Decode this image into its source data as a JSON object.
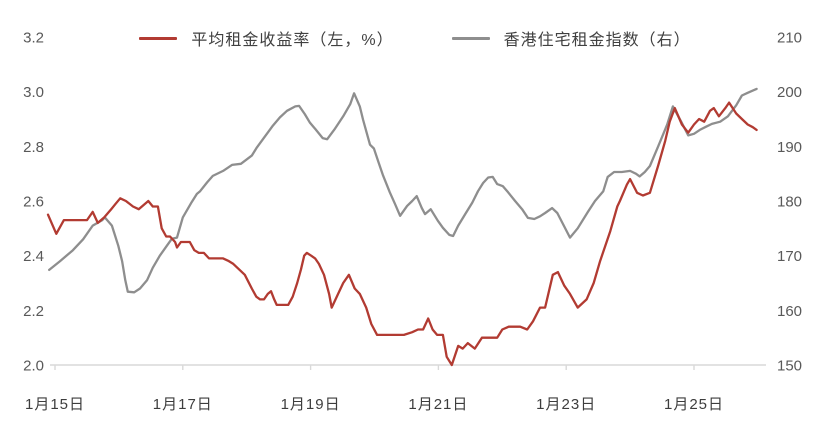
{
  "legend": {
    "items": [
      {
        "label": "平均租金收益率（左，%）",
        "marker": "line-icon"
      },
      {
        "label": "香港住宅租金指数（右）",
        "marker": "line-icon"
      }
    ]
  },
  "colors": {
    "yield_line": "#b23b32",
    "index_line": "#8e8e8e",
    "axis_line": "#d9d9d9",
    "y_tick_text": "#595959",
    "x_tick_text": "#3d3d3d",
    "background": "#ffffff"
  },
  "chart_data": {
    "type": "line",
    "title": "",
    "grid": false,
    "legend_position": "top",
    "x_unit": "day of January",
    "x_range": [
      14.85,
      26.1
    ],
    "x_ticks": {
      "values": [
        15,
        17,
        19,
        21,
        23,
        25
      ],
      "labels": [
        "1月15日",
        "1月17日",
        "1月19日",
        "1月21日",
        "1月23日",
        "1月25日"
      ]
    },
    "left_axis": {
      "label": "平均租金收益率（%）",
      "range": [
        2.0,
        3.2
      ],
      "tick_values": [
        3.2,
        3.0,
        2.8,
        2.6,
        2.4,
        2.2,
        2.0
      ],
      "tick_labels": [
        "3.2",
        "3.0",
        "2.8",
        "2.6",
        "2.4",
        "2.2",
        "2.0"
      ]
    },
    "right_axis": {
      "label": "香港住宅租金指数",
      "range": [
        150,
        210
      ],
      "tick_values": [
        210,
        200,
        190,
        180,
        170,
        160,
        150
      ],
      "tick_labels": [
        "210",
        "200",
        "190",
        "180",
        "170",
        "160",
        "150"
      ]
    },
    "series": [
      {
        "name": "平均租金收益率（左，%）",
        "axis": "left",
        "color": "#b23b32",
        "points": [
          [
            14.89,
            2.55
          ],
          [
            15.02,
            2.48
          ],
          [
            15.14,
            2.53
          ],
          [
            15.3,
            2.53
          ],
          [
            15.42,
            2.53
          ],
          [
            15.5,
            2.53
          ],
          [
            15.59,
            2.56
          ],
          [
            15.67,
            2.52
          ],
          [
            15.77,
            2.54
          ],
          [
            15.88,
            2.57
          ],
          [
            15.95,
            2.59
          ],
          [
            16.02,
            2.61
          ],
          [
            16.11,
            2.6
          ],
          [
            16.22,
            2.58
          ],
          [
            16.31,
            2.57
          ],
          [
            16.41,
            2.59
          ],
          [
            16.46,
            2.6
          ],
          [
            16.53,
            2.58
          ],
          [
            16.61,
            2.58
          ],
          [
            16.67,
            2.5
          ],
          [
            16.74,
            2.47
          ],
          [
            16.8,
            2.47
          ],
          [
            16.88,
            2.45
          ],
          [
            16.91,
            2.43
          ],
          [
            16.97,
            2.45
          ],
          [
            17.05,
            2.45
          ],
          [
            17.11,
            2.45
          ],
          [
            17.18,
            2.42
          ],
          [
            17.25,
            2.41
          ],
          [
            17.33,
            2.41
          ],
          [
            17.41,
            2.39
          ],
          [
            17.52,
            2.39
          ],
          [
            17.63,
            2.39
          ],
          [
            17.72,
            2.38
          ],
          [
            17.79,
            2.37
          ],
          [
            17.88,
            2.35
          ],
          [
            17.97,
            2.33
          ],
          [
            18.08,
            2.28
          ],
          [
            18.15,
            2.25
          ],
          [
            18.21,
            2.24
          ],
          [
            18.27,
            2.24
          ],
          [
            18.33,
            2.26
          ],
          [
            18.38,
            2.27
          ],
          [
            18.43,
            2.24
          ],
          [
            18.47,
            2.22
          ],
          [
            18.55,
            2.22
          ],
          [
            18.65,
            2.22
          ],
          [
            18.72,
            2.25
          ],
          [
            18.79,
            2.3
          ],
          [
            18.85,
            2.35
          ],
          [
            18.9,
            2.4
          ],
          [
            18.94,
            2.41
          ],
          [
            19.01,
            2.4
          ],
          [
            19.07,
            2.39
          ],
          [
            19.13,
            2.37
          ],
          [
            19.21,
            2.33
          ],
          [
            19.29,
            2.26
          ],
          [
            19.33,
            2.21
          ],
          [
            19.43,
            2.26
          ],
          [
            19.51,
            2.3
          ],
          [
            19.6,
            2.33
          ],
          [
            19.69,
            2.28
          ],
          [
            19.77,
            2.26
          ],
          [
            19.87,
            2.21
          ],
          [
            19.95,
            2.15
          ],
          [
            20.04,
            2.11
          ],
          [
            20.15,
            2.11
          ],
          [
            20.25,
            2.11
          ],
          [
            20.35,
            2.11
          ],
          [
            20.46,
            2.11
          ],
          [
            20.59,
            2.12
          ],
          [
            20.68,
            2.13
          ],
          [
            20.76,
            2.13
          ],
          [
            20.84,
            2.17
          ],
          [
            20.91,
            2.13
          ],
          [
            20.98,
            2.11
          ],
          [
            21.07,
            2.11
          ],
          [
            21.13,
            2.03
          ],
          [
            21.21,
            2.0
          ],
          [
            21.31,
            2.07
          ],
          [
            21.38,
            2.06
          ],
          [
            21.46,
            2.08
          ],
          [
            21.57,
            2.06
          ],
          [
            21.68,
            2.1
          ],
          [
            21.81,
            2.1
          ],
          [
            21.92,
            2.1
          ],
          [
            22.0,
            2.13
          ],
          [
            22.1,
            2.14
          ],
          [
            22.2,
            2.14
          ],
          [
            22.28,
            2.14
          ],
          [
            22.39,
            2.13
          ],
          [
            22.48,
            2.16
          ],
          [
            22.59,
            2.21
          ],
          [
            22.67,
            2.21
          ],
          [
            22.79,
            2.33
          ],
          [
            22.87,
            2.34
          ],
          [
            22.97,
            2.29
          ],
          [
            23.06,
            2.26
          ],
          [
            23.18,
            2.21
          ],
          [
            23.32,
            2.24
          ],
          [
            23.43,
            2.3
          ],
          [
            23.53,
            2.38
          ],
          [
            23.69,
            2.49
          ],
          [
            23.8,
            2.58
          ],
          [
            23.84,
            2.6
          ],
          [
            23.95,
            2.66
          ],
          [
            24.0,
            2.68
          ],
          [
            24.11,
            2.63
          ],
          [
            24.2,
            2.62
          ],
          [
            24.31,
            2.63
          ],
          [
            24.44,
            2.73
          ],
          [
            24.55,
            2.82
          ],
          [
            24.62,
            2.89
          ],
          [
            24.7,
            2.94
          ],
          [
            24.81,
            2.88
          ],
          [
            24.91,
            2.85
          ],
          [
            25.0,
            2.88
          ],
          [
            25.08,
            2.9
          ],
          [
            25.16,
            2.89
          ],
          [
            25.25,
            2.93
          ],
          [
            25.31,
            2.94
          ],
          [
            25.39,
            2.91
          ],
          [
            25.49,
            2.94
          ],
          [
            25.55,
            2.96
          ],
          [
            25.66,
            2.92
          ],
          [
            25.75,
            2.9
          ],
          [
            25.84,
            2.88
          ],
          [
            25.92,
            2.87
          ],
          [
            25.98,
            2.86
          ]
        ]
      },
      {
        "name": "香港住宅租金指数（右）",
        "axis": "right",
        "color": "#8e8e8e",
        "points": [
          [
            14.91,
            167.4
          ],
          [
            15.08,
            169.0
          ],
          [
            15.28,
            171.0
          ],
          [
            15.44,
            173.0
          ],
          [
            15.59,
            175.5
          ],
          [
            15.74,
            176.5
          ],
          [
            15.78,
            177.0
          ],
          [
            15.89,
            175.5
          ],
          [
            15.99,
            171.8
          ],
          [
            16.05,
            169.0
          ],
          [
            16.1,
            165.5
          ],
          [
            16.14,
            163.4
          ],
          [
            16.24,
            163.3
          ],
          [
            16.33,
            164.0
          ],
          [
            16.44,
            165.5
          ],
          [
            16.53,
            167.8
          ],
          [
            16.64,
            170.0
          ],
          [
            16.75,
            171.8
          ],
          [
            16.83,
            173.1
          ],
          [
            16.91,
            173.3
          ],
          [
            17.0,
            177.0
          ],
          [
            17.14,
            179.8
          ],
          [
            17.22,
            181.3
          ],
          [
            17.27,
            181.8
          ],
          [
            17.38,
            183.4
          ],
          [
            17.47,
            184.6
          ],
          [
            17.63,
            185.5
          ],
          [
            17.77,
            186.6
          ],
          [
            17.91,
            186.8
          ],
          [
            18.08,
            188.3
          ],
          [
            18.16,
            189.8
          ],
          [
            18.26,
            191.4
          ],
          [
            18.41,
            193.8
          ],
          [
            18.52,
            195.3
          ],
          [
            18.63,
            196.5
          ],
          [
            18.76,
            197.3
          ],
          [
            18.82,
            197.4
          ],
          [
            18.91,
            195.9
          ],
          [
            18.99,
            194.3
          ],
          [
            19.07,
            193.2
          ],
          [
            19.19,
            191.5
          ],
          [
            19.26,
            191.3
          ],
          [
            19.38,
            193.2
          ],
          [
            19.51,
            195.5
          ],
          [
            19.62,
            197.7
          ],
          [
            19.68,
            199.7
          ],
          [
            19.77,
            197.3
          ],
          [
            19.82,
            194.9
          ],
          [
            19.88,
            192.4
          ],
          [
            19.93,
            190.3
          ],
          [
            19.99,
            189.6
          ],
          [
            20.06,
            187.2
          ],
          [
            20.13,
            184.8
          ],
          [
            20.24,
            181.6
          ],
          [
            20.32,
            179.5
          ],
          [
            20.4,
            177.3
          ],
          [
            20.51,
            179.1
          ],
          [
            20.59,
            180.0
          ],
          [
            20.66,
            180.9
          ],
          [
            20.74,
            178.7
          ],
          [
            20.79,
            177.6
          ],
          [
            20.88,
            178.5
          ],
          [
            20.99,
            176.4
          ],
          [
            21.07,
            175.1
          ],
          [
            21.17,
            173.8
          ],
          [
            21.23,
            173.6
          ],
          [
            21.31,
            175.5
          ],
          [
            21.42,
            177.6
          ],
          [
            21.53,
            179.7
          ],
          [
            21.62,
            181.8
          ],
          [
            21.7,
            183.3
          ],
          [
            21.78,
            184.3
          ],
          [
            21.85,
            184.4
          ],
          [
            21.92,
            183.1
          ],
          [
            22.01,
            182.7
          ],
          [
            22.09,
            181.6
          ],
          [
            22.2,
            180.0
          ],
          [
            22.31,
            178.5
          ],
          [
            22.4,
            176.9
          ],
          [
            22.5,
            176.7
          ],
          [
            22.59,
            177.2
          ],
          [
            22.67,
            177.8
          ],
          [
            22.78,
            178.7
          ],
          [
            22.86,
            177.8
          ],
          [
            22.94,
            176.0
          ],
          [
            23.06,
            173.3
          ],
          [
            23.18,
            175.0
          ],
          [
            23.34,
            178.0
          ],
          [
            23.45,
            180.0
          ],
          [
            23.58,
            181.8
          ],
          [
            23.65,
            184.4
          ],
          [
            23.75,
            185.3
          ],
          [
            23.87,
            185.3
          ],
          [
            24.0,
            185.5
          ],
          [
            24.09,
            185.0
          ],
          [
            24.15,
            184.5
          ],
          [
            24.23,
            185.3
          ],
          [
            24.31,
            186.4
          ],
          [
            24.44,
            190.0
          ],
          [
            24.58,
            194.0
          ],
          [
            24.67,
            197.3
          ],
          [
            24.8,
            194.5
          ],
          [
            24.91,
            192.0
          ],
          [
            25.0,
            192.3
          ],
          [
            25.09,
            193.0
          ],
          [
            25.19,
            193.6
          ],
          [
            25.28,
            194.1
          ],
          [
            25.41,
            194.5
          ],
          [
            25.53,
            195.5
          ],
          [
            25.66,
            197.5
          ],
          [
            25.75,
            199.3
          ],
          [
            25.84,
            199.8
          ],
          [
            25.92,
            200.2
          ],
          [
            25.98,
            200.5
          ]
        ]
      }
    ]
  }
}
